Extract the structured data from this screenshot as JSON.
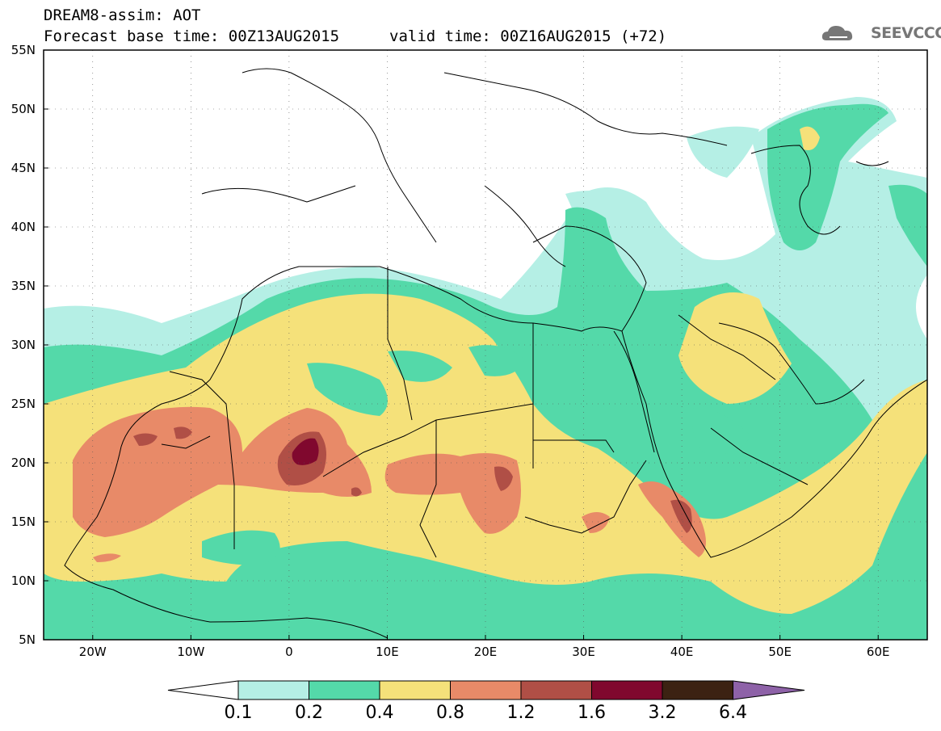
{
  "header": {
    "title_line1": "DREAM8-assim: AOT",
    "title_line2": "Forecast base time: 00Z13AUG2015",
    "valid_time": "valid time: 00Z16AUG2015 (+72)",
    "logo_text": "SEEVCCC"
  },
  "map": {
    "projection": "lat-lon",
    "lon_range": [
      -25,
      65
    ],
    "lat_range": [
      5,
      55
    ],
    "lat_labels": [
      "5N",
      "10N",
      "15N",
      "20N",
      "25N",
      "30N",
      "35N",
      "40N",
      "45N",
      "50N",
      "55N"
    ],
    "lon_labels": [
      "20W",
      "10W",
      "0",
      "10E",
      "20E",
      "30E",
      "40E",
      "50E",
      "60E"
    ],
    "field": "Aerosol Optical Thickness (dust)",
    "max_region": "central Algeria/Mali, ~21N 2E"
  },
  "legend": {
    "labels": [
      "0.1",
      "0.2",
      "0.4",
      "0.8",
      "1.2",
      "1.6",
      "3.2",
      "6.4"
    ],
    "colors": [
      "#ffffff",
      "#b5efe5",
      "#54d9a9",
      "#f5e17a",
      "#e88a68",
      "#b04f46",
      "#80082e",
      "#3c2212",
      "#8e62a8"
    ]
  },
  "colors": {
    "c01": "#b5efe5",
    "c02": "#54d9a9",
    "c04": "#f5e17a",
    "c08": "#e88a68",
    "c12": "#b04f46",
    "c16": "#80082e"
  }
}
